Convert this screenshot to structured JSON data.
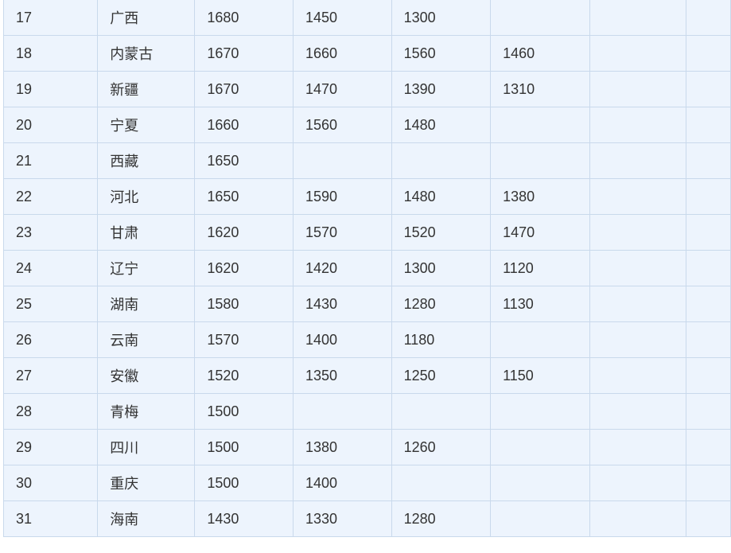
{
  "table": {
    "rows": [
      [
        "17",
        "广西",
        "1680",
        "1450",
        "1300",
        "",
        ""
      ],
      [
        "18",
        "内蒙古",
        "1670",
        "1660",
        "1560",
        "1460",
        ""
      ],
      [
        "19",
        "新疆",
        "1670",
        "1470",
        "1390",
        "1310",
        ""
      ],
      [
        "20",
        "宁夏",
        "1660",
        "1560",
        "1480",
        "",
        ""
      ],
      [
        "21",
        "西藏",
        "1650",
        "",
        "",
        "",
        ""
      ],
      [
        "22",
        "河北",
        "1650",
        "1590",
        "1480",
        "1380",
        ""
      ],
      [
        "23",
        "甘肃",
        "1620",
        "1570",
        "1520",
        "1470",
        ""
      ],
      [
        "24",
        "辽宁",
        "1620",
        "1420",
        "1300",
        "1120",
        ""
      ],
      [
        "25",
        "湖南",
        "1580",
        "1430",
        "1280",
        "1130",
        ""
      ],
      [
        "26",
        "云南",
        "1570",
        "1400",
        "1180",
        "",
        ""
      ],
      [
        "27",
        "安徽",
        "1520",
        "1350",
        "1250",
        "1150",
        ""
      ],
      [
        "28",
        "青梅",
        "1500",
        "",
        "",
        "",
        ""
      ],
      [
        "29",
        "四川",
        "1500",
        "1380",
        "1260",
        "",
        ""
      ],
      [
        "30",
        "重庆",
        "1500",
        "1400",
        "",
        "",
        ""
      ],
      [
        "31",
        "海南",
        "1430",
        "1330",
        "1280",
        "",
        ""
      ]
    ]
  }
}
